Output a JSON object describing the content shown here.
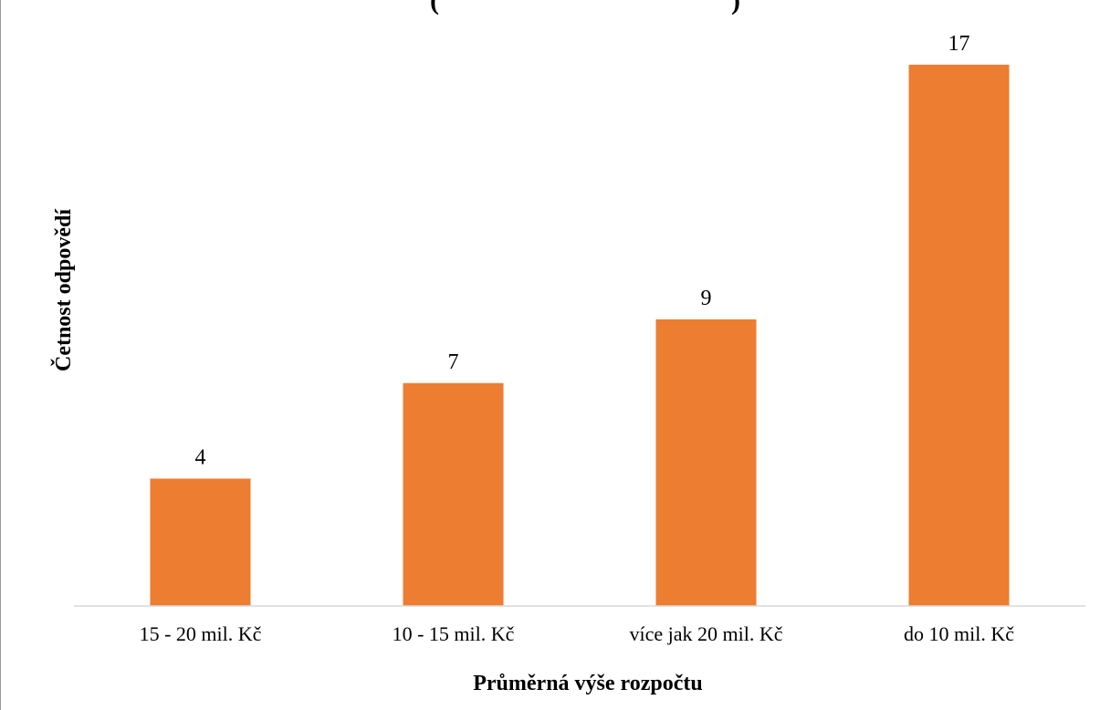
{
  "chart_data": {
    "type": "bar",
    "title_fragment_left": "(",
    "title_fragment_right": ")",
    "categories": [
      "15 - 20 mil. Kč",
      "10 - 15 mil. Kč",
      "více jak 20 mil. Kč",
      "do 10 mil. Kč"
    ],
    "values": [
      4,
      7,
      9,
      17
    ],
    "xlabel": "Průměrná výše rozpočtu",
    "ylabel": "Četnost odpovědí",
    "ylim": [
      0,
      18
    ],
    "grid": false,
    "legend": "none",
    "data_labels": true,
    "colors": {
      "bar": "#ED7D31",
      "axis": "#D9D9D9"
    }
  }
}
